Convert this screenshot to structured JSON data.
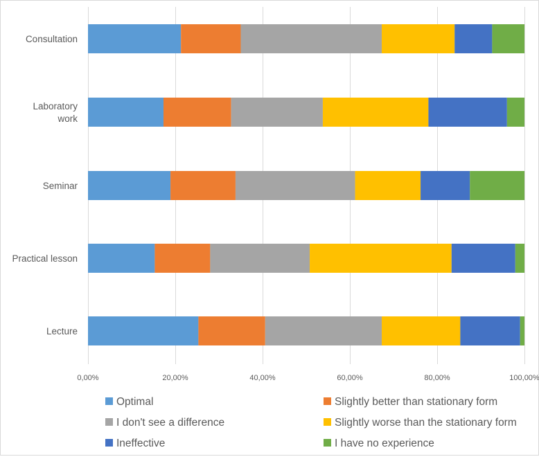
{
  "chart_data": {
    "type": "bar",
    "orientation": "horizontal",
    "stacked": "percent",
    "categories": [
      "Consultation",
      "Laboratory work",
      "Seminar",
      "Practical lesson",
      "Lecture"
    ],
    "category_lines": [
      [
        "Consultation"
      ],
      [
        "Laboratory",
        "work"
      ],
      [
        "Seminar"
      ],
      [
        "Practical lesson"
      ],
      [
        "Lecture"
      ]
    ],
    "series": [
      {
        "name": "Optimal",
        "color": "#5B9BD5",
        "values": [
          21.3,
          17.3,
          18.9,
          15.3,
          25.3
        ]
      },
      {
        "name": "Slightly better than stationary form",
        "color": "#ED7D31",
        "values": [
          13.7,
          15.5,
          14.9,
          12.7,
          15.3
        ]
      },
      {
        "name": "I don't see a difference",
        "color": "#A5A5A5",
        "values": [
          32.3,
          21.0,
          27.4,
          22.8,
          26.7
        ]
      },
      {
        "name": "Slightly worse than the stationary form",
        "color": "#FFC000",
        "values": [
          16.7,
          24.2,
          15.0,
          32.5,
          18.0
        ]
      },
      {
        "name": "Ineffective",
        "color": "#4472C4",
        "values": [
          8.6,
          18.0,
          11.3,
          14.6,
          13.7
        ]
      },
      {
        "name": "I have no experience",
        "color": "#70AD47",
        "values": [
          7.4,
          4.0,
          12.5,
          2.1,
          1.0
        ]
      }
    ],
    "xlim": [
      0,
      100
    ],
    "xticks": [
      "0,00%",
      "20,00%",
      "40,00%",
      "60,00%",
      "80,00%",
      "100,00%"
    ],
    "xtick_values": [
      0,
      20,
      40,
      60,
      80,
      100
    ],
    "grid": true,
    "legend_position": "bottom"
  }
}
